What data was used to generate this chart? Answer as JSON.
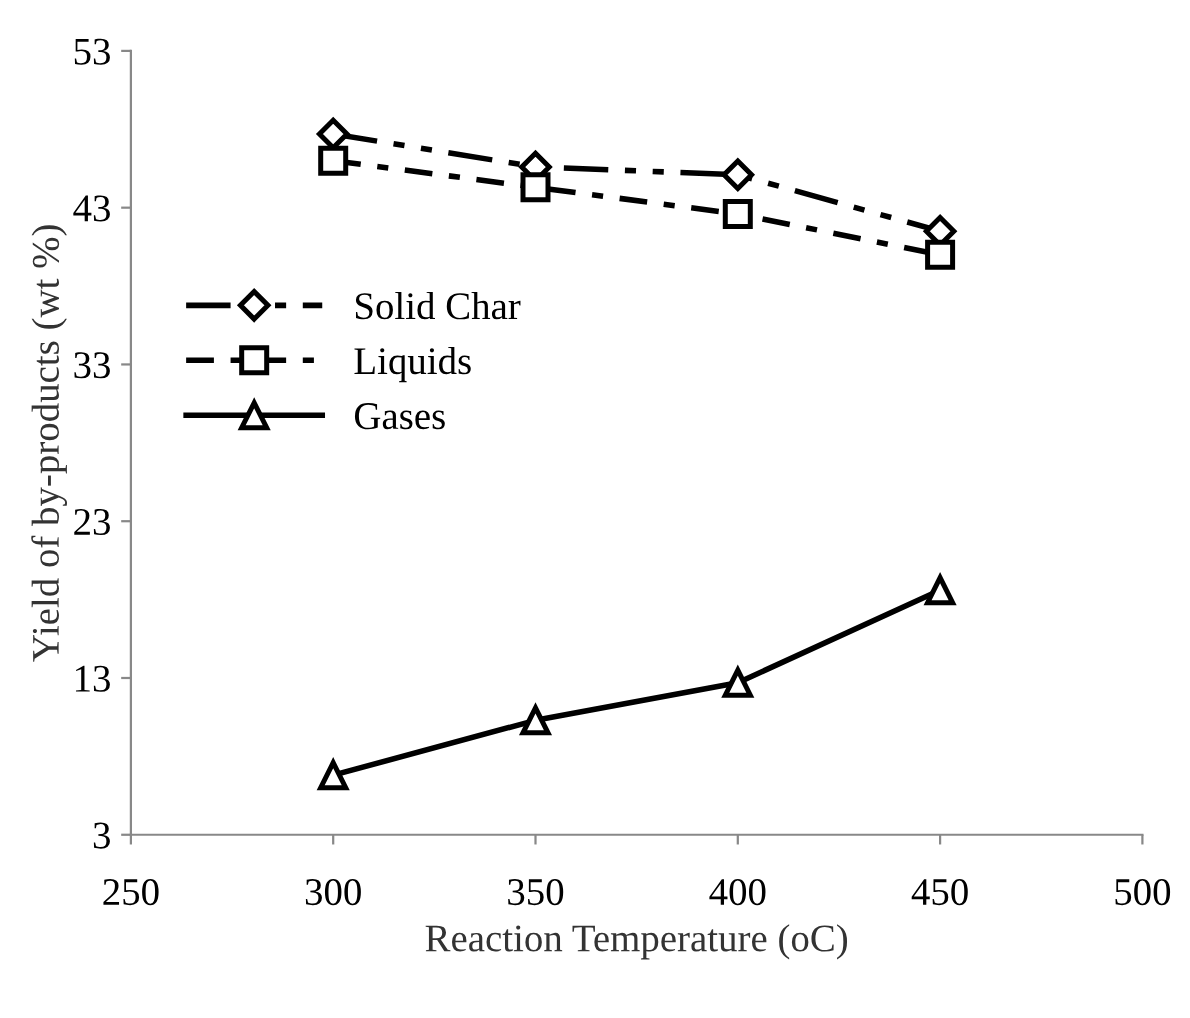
{
  "chart_data": {
    "type": "line",
    "xlabel": "Reaction Temperature (oC)",
    "ylabel": "Yield of by-products (wt %)",
    "x": [
      300,
      350,
      400,
      450
    ],
    "series": [
      {
        "name": "Solid Char",
        "color": "#000000",
        "values": [
          47.7,
          45.6,
          45.1,
          41.5
        ],
        "marker": "diamond",
        "line_style": "dashed"
      },
      {
        "name": "Liquids",
        "color": "#000000",
        "values": [
          46.0,
          44.3,
          42.6,
          40.0
        ],
        "marker": "square",
        "line_style": "dotted"
      },
      {
        "name": "Gases",
        "color": "#000000",
        "values": [
          6.8,
          10.3,
          12.7,
          18.6
        ],
        "marker": "triangle",
        "line_style": "solid"
      }
    ],
    "xlim": [
      250,
      500
    ],
    "xticks": [
      250,
      300,
      350,
      400,
      450,
      500
    ],
    "ylim": [
      3,
      53
    ],
    "yticks": [
      3,
      13,
      23,
      33,
      43,
      53
    ],
    "grid": false,
    "legend": "center left"
  }
}
